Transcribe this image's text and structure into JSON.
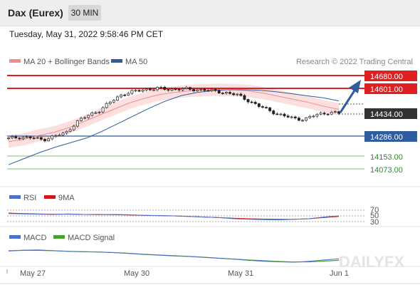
{
  "header": {
    "instrument": "Dax (Eurex)",
    "timeframe": "30 MIN",
    "timestamp": "Tuesday, May 31, 2022 9:58:46 PM CET"
  },
  "chart_data": [
    {
      "type": "candlestick",
      "panel": "price",
      "legend": [
        {
          "name": "MA 20 + Bollinger Bands",
          "color": "#f28b8b"
        },
        {
          "name": "MA 50",
          "color": "#2f5c9e"
        }
      ],
      "credit": "Research © 2022 Trading Central",
      "x_ticks": [
        "May 27",
        "May 30",
        "May 31",
        "Jun 1"
      ],
      "ohlc_close_path": [
        14270,
        14280,
        14275,
        14262,
        14285,
        14305,
        14380,
        14420,
        14455,
        14510,
        14560,
        14575,
        14590,
        14596,
        14590,
        14593,
        14588,
        14590,
        14578,
        14570,
        14555,
        14520,
        14480,
        14450,
        14420,
        14402,
        14395,
        14425,
        14440,
        14434
      ],
      "levels": [
        {
          "value": "14680.00",
          "role": "resistance",
          "color": "#e02020"
        },
        {
          "value": "14601.00",
          "role": "resistance",
          "color": "#e02020"
        },
        {
          "value": "14434.00",
          "role": "last",
          "color": "#333333"
        },
        {
          "value": "14286.00",
          "role": "pivot",
          "color": "#2f5c9e"
        },
        {
          "value": "14153.00",
          "role": "support",
          "color": "#2e8b2e"
        },
        {
          "value": "14073.00",
          "role": "support",
          "color": "#2e8b2e"
        }
      ],
      "ma20": [
        14250,
        14265,
        14290,
        14310,
        14340,
        14380,
        14420,
        14460,
        14500,
        14530,
        14555,
        14570,
        14580,
        14585,
        14588,
        14586,
        14580,
        14565,
        14545,
        14525,
        14505,
        14480,
        14460
      ],
      "ma50": [
        14100,
        14140,
        14180,
        14215,
        14245,
        14275,
        14320,
        14370,
        14420,
        14470,
        14515,
        14550,
        14570,
        14582,
        14588,
        14588,
        14584,
        14575,
        14562,
        14548,
        14535,
        14515
      ],
      "forecast_arrow": "up"
    },
    {
      "type": "line",
      "panel": "rsi",
      "legend": [
        {
          "name": "RSI",
          "color": "#4a6fd1"
        },
        {
          "name": "9MA",
          "color": "#d01818"
        }
      ],
      "levels": [
        "70",
        "50",
        "30"
      ],
      "series": [
        {
          "name": "RSI",
          "values": [
            58,
            57,
            56,
            55,
            57,
            55,
            54,
            55,
            54,
            52,
            51,
            50,
            48,
            46,
            44,
            40,
            38,
            37,
            36,
            38,
            40,
            46,
            50
          ]
        },
        {
          "name": "9MA",
          "values": [
            60,
            58,
            57,
            56,
            56,
            55,
            55,
            54,
            53,
            52,
            51,
            50,
            48,
            46,
            44,
            42,
            40,
            39,
            38,
            38,
            40,
            44,
            48
          ]
        }
      ]
    },
    {
      "type": "line",
      "panel": "macd",
      "legend": [
        {
          "name": "MACD",
          "color": "#4a6fd1"
        },
        {
          "name": "MACD Signal",
          "color": "#4aa02c"
        }
      ],
      "series": [
        {
          "name": "MACD",
          "values": [
            0.6,
            0.65,
            0.66,
            0.62,
            0.58,
            0.56,
            0.55,
            0.52,
            0.47,
            0.42,
            0.38,
            0.34,
            0.31,
            0.26,
            0.21,
            0.16,
            0.1,
            0.05,
            0.02,
            0.0,
            0.05,
            0.12,
            0.18
          ]
        },
        {
          "name": "MACD Signal",
          "values": [
            0.62,
            0.64,
            0.64,
            0.62,
            0.59,
            0.57,
            0.55,
            0.52,
            0.48,
            0.43,
            0.39,
            0.35,
            0.31,
            0.27,
            0.22,
            0.17,
            0.12,
            0.08,
            0.04,
            0.01,
            0.02,
            0.06,
            0.1
          ]
        }
      ]
    }
  ],
  "watermark": "DAILYFX"
}
